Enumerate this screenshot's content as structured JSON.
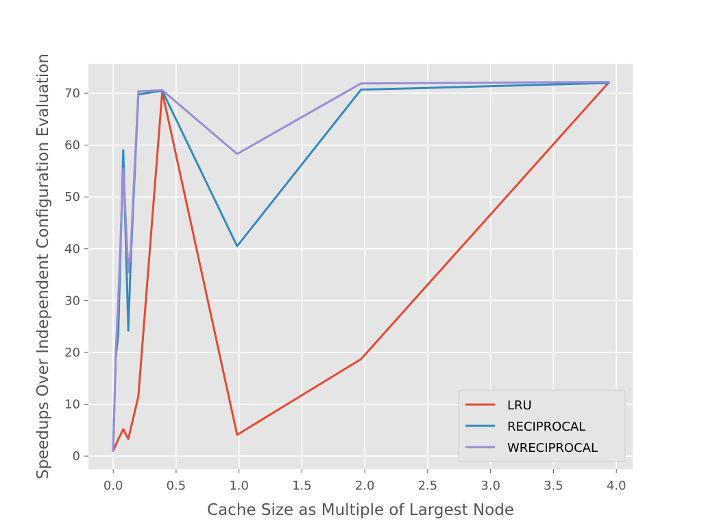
{
  "chart_data": {
    "type": "line",
    "title": "",
    "xlabel": "Cache Size as Multiple of Largest Node",
    "ylabel": "Speedups Over Independent Configuration Evaluation",
    "xlim": [
      -0.197,
      4.13
    ],
    "ylim": [
      -2.5,
      75.7
    ],
    "xticks": [
      0.0,
      0.5,
      1.0,
      1.5,
      2.0,
      2.5,
      3.0,
      3.5,
      4.0
    ],
    "xtick_labels": [
      "0.0",
      "0.5",
      "1.0",
      "1.5",
      "2.0",
      "2.5",
      "3.0",
      "3.5",
      "4.0"
    ],
    "yticks": [
      0,
      10,
      20,
      30,
      40,
      50,
      60,
      70
    ],
    "ytick_labels": [
      "0",
      "10",
      "20",
      "30",
      "40",
      "50",
      "60",
      "70"
    ],
    "grid": true,
    "background": "#e5e5e5",
    "legend_position": "lower-right",
    "series": [
      {
        "name": "LRU",
        "color": "#e24a33",
        "x": [
          0.0,
          0.04,
          0.08,
          0.12,
          0.2,
          0.39,
          0.985,
          1.97,
          3.94
        ],
        "y": [
          1.0,
          3.2,
          5.2,
          3.3,
          11.5,
          70.3,
          4.1,
          18.7,
          72.1
        ]
      },
      {
        "name": "RECIPROCAL",
        "color": "#348abd",
        "x": [
          0.0,
          0.02,
          0.04,
          0.08,
          0.12,
          0.14,
          0.2,
          0.39,
          0.985,
          1.97,
          3.94
        ],
        "y": [
          1.0,
          19.0,
          23.5,
          59.0,
          24.2,
          38.0,
          69.8,
          70.5,
          40.5,
          70.7,
          72.0
        ]
      },
      {
        "name": "WRECIPROCAL",
        "color": "#988ed5",
        "x": [
          0.0,
          0.02,
          0.04,
          0.08,
          0.12,
          0.14,
          0.2,
          0.39,
          0.985,
          1.97,
          3.94
        ],
        "y": [
          1.0,
          19.5,
          30.0,
          55.5,
          35.5,
          40.0,
          70.4,
          70.6,
          58.3,
          71.9,
          72.2
        ]
      }
    ]
  }
}
